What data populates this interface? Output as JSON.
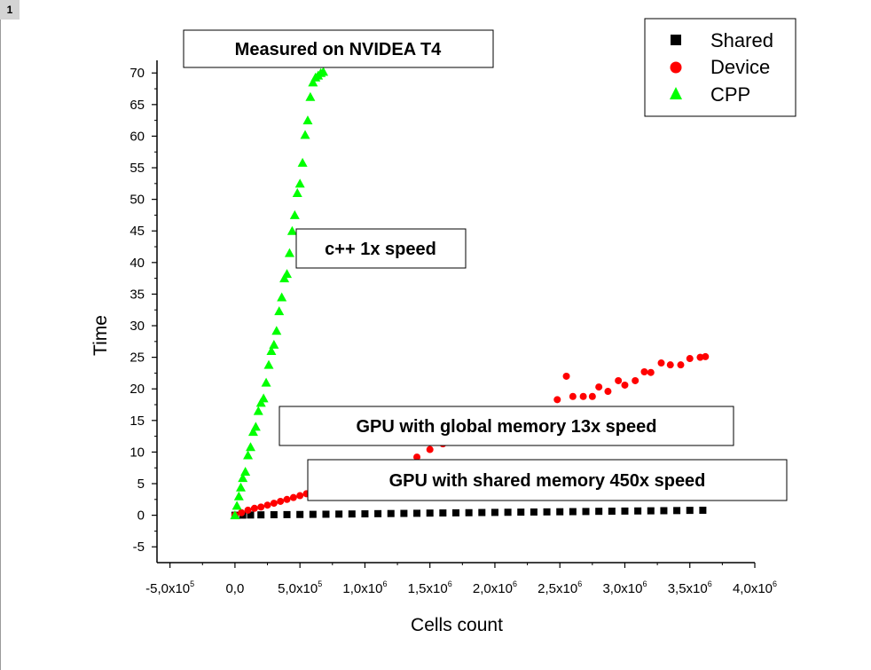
{
  "page": {
    "tab_label": "1"
  },
  "chart_data": {
    "type": "scatter",
    "title": "",
    "xlabel": "Cells count",
    "ylabel": "Time",
    "xlim": [
      -600000,
      4000000
    ],
    "ylim": [
      -7.5,
      72
    ],
    "x_ticks": [
      {
        "value": -500000,
        "mantissa": "-5,0x10",
        "exp": "5"
      },
      {
        "value": 0,
        "mantissa": "0,0",
        "exp": ""
      },
      {
        "value": 500000,
        "mantissa": "5,0x10",
        "exp": "5"
      },
      {
        "value": 1000000,
        "mantissa": "1,0x10",
        "exp": "6"
      },
      {
        "value": 1500000,
        "mantissa": "1,5x10",
        "exp": "6"
      },
      {
        "value": 2000000,
        "mantissa": "2,0x10",
        "exp": "6"
      },
      {
        "value": 2500000,
        "mantissa": "2,5x10",
        "exp": "6"
      },
      {
        "value": 3000000,
        "mantissa": "3,0x10",
        "exp": "6"
      },
      {
        "value": 3500000,
        "mantissa": "3,5x10",
        "exp": "6"
      },
      {
        "value": 4000000,
        "mantissa": "4,0x10",
        "exp": "6"
      }
    ],
    "y_ticks": [
      "70",
      "65",
      "60",
      "55",
      "50",
      "45",
      "40",
      "35",
      "30",
      "25",
      "20",
      "15",
      "10",
      "5",
      "0",
      "-5"
    ],
    "y_tick_values": [
      70,
      65,
      60,
      55,
      50,
      45,
      40,
      35,
      30,
      25,
      20,
      15,
      10,
      5,
      0,
      -5
    ],
    "legend": {
      "placement": "top-right"
    },
    "series": [
      {
        "name": "Shared",
        "marker": "square",
        "color": "#000000",
        "x": [
          0,
          60000,
          120000,
          200000,
          300000,
          400000,
          500000,
          600000,
          700000,
          800000,
          900000,
          1000000,
          1100000,
          1200000,
          1300000,
          1400000,
          1500000,
          1600000,
          1700000,
          1800000,
          1900000,
          2000000,
          2100000,
          2200000,
          2300000,
          2400000,
          2500000,
          2600000,
          2700000,
          2800000,
          2900000,
          3000000,
          3100000,
          3200000,
          3300000,
          3400000,
          3500000,
          3600000
        ],
        "y": [
          0,
          0.02,
          0.04,
          0.06,
          0.08,
          0.1,
          0.12,
          0.14,
          0.16,
          0.18,
          0.2,
          0.22,
          0.25,
          0.27,
          0.29,
          0.31,
          0.34,
          0.36,
          0.38,
          0.4,
          0.43,
          0.45,
          0.47,
          0.49,
          0.51,
          0.53,
          0.55,
          0.57,
          0.59,
          0.62,
          0.64,
          0.66,
          0.68,
          0.7,
          0.72,
          0.74,
          0.77,
          0.79
        ]
      },
      {
        "name": "Device",
        "marker": "circle",
        "color": "#ff0000",
        "x": [
          0,
          50000,
          100000,
          150000,
          200000,
          250000,
          300000,
          350000,
          400000,
          450000,
          500000,
          550000,
          600000,
          650000,
          700000,
          800000,
          900000,
          1000000,
          1100000,
          1200000,
          1300000,
          1400000,
          1500000,
          1600000,
          2480000,
          2550000,
          2600000,
          2680000,
          2750000,
          2800000,
          2870000,
          2950000,
          3000000,
          3080000,
          3150000,
          3200000,
          3280000,
          3350000,
          3430000,
          3500000,
          3580000,
          3620000
        ],
        "y": [
          0,
          0.4,
          0.8,
          1.1,
          1.3,
          1.6,
          1.9,
          2.2,
          2.5,
          2.8,
          3.1,
          3.4,
          3.7,
          4.0,
          4.4,
          5.0,
          5.7,
          6.3,
          6.9,
          7.6,
          8.3,
          9.2,
          10.4,
          11.3,
          18.3,
          22.0,
          18.8,
          18.8,
          18.8,
          20.3,
          19.6,
          21.3,
          20.6,
          21.3,
          22.7,
          22.6,
          24.1,
          23.8,
          23.8,
          24.8,
          25.0,
          25.1
        ]
      },
      {
        "name": "CPP",
        "marker": "triangle",
        "color": "#00ff00",
        "x": [
          0,
          15000,
          30000,
          45000,
          60000,
          80000,
          100000,
          120000,
          140000,
          160000,
          180000,
          200000,
          220000,
          240000,
          260000,
          280000,
          300000,
          320000,
          340000,
          360000,
          380000,
          400000,
          420000,
          440000,
          460000,
          480000,
          500000,
          520000,
          540000,
          560000,
          580000,
          600000,
          620000,
          640000,
          660000,
          680000
        ],
        "y": [
          0,
          1.5,
          3.0,
          4.4,
          5.9,
          6.9,
          9.5,
          10.8,
          13.2,
          14.0,
          16.5,
          17.8,
          18.5,
          21.0,
          23.8,
          26.0,
          27.0,
          29.2,
          32.3,
          34.5,
          37.5,
          38.2,
          41.5,
          45.0,
          47.5,
          51.0,
          52.5,
          55.8,
          60.2,
          62.5,
          66.2,
          68.5,
          69.3,
          69.6,
          70.0,
          70.2
        ]
      }
    ],
    "annotations": [
      {
        "text": "Measured on NVIDEA T4"
      },
      {
        "text": "c++ 1x speed"
      },
      {
        "text": "GPU with global memory 13x speed"
      },
      {
        "text": "GPU with shared memory 450x speed"
      }
    ]
  }
}
